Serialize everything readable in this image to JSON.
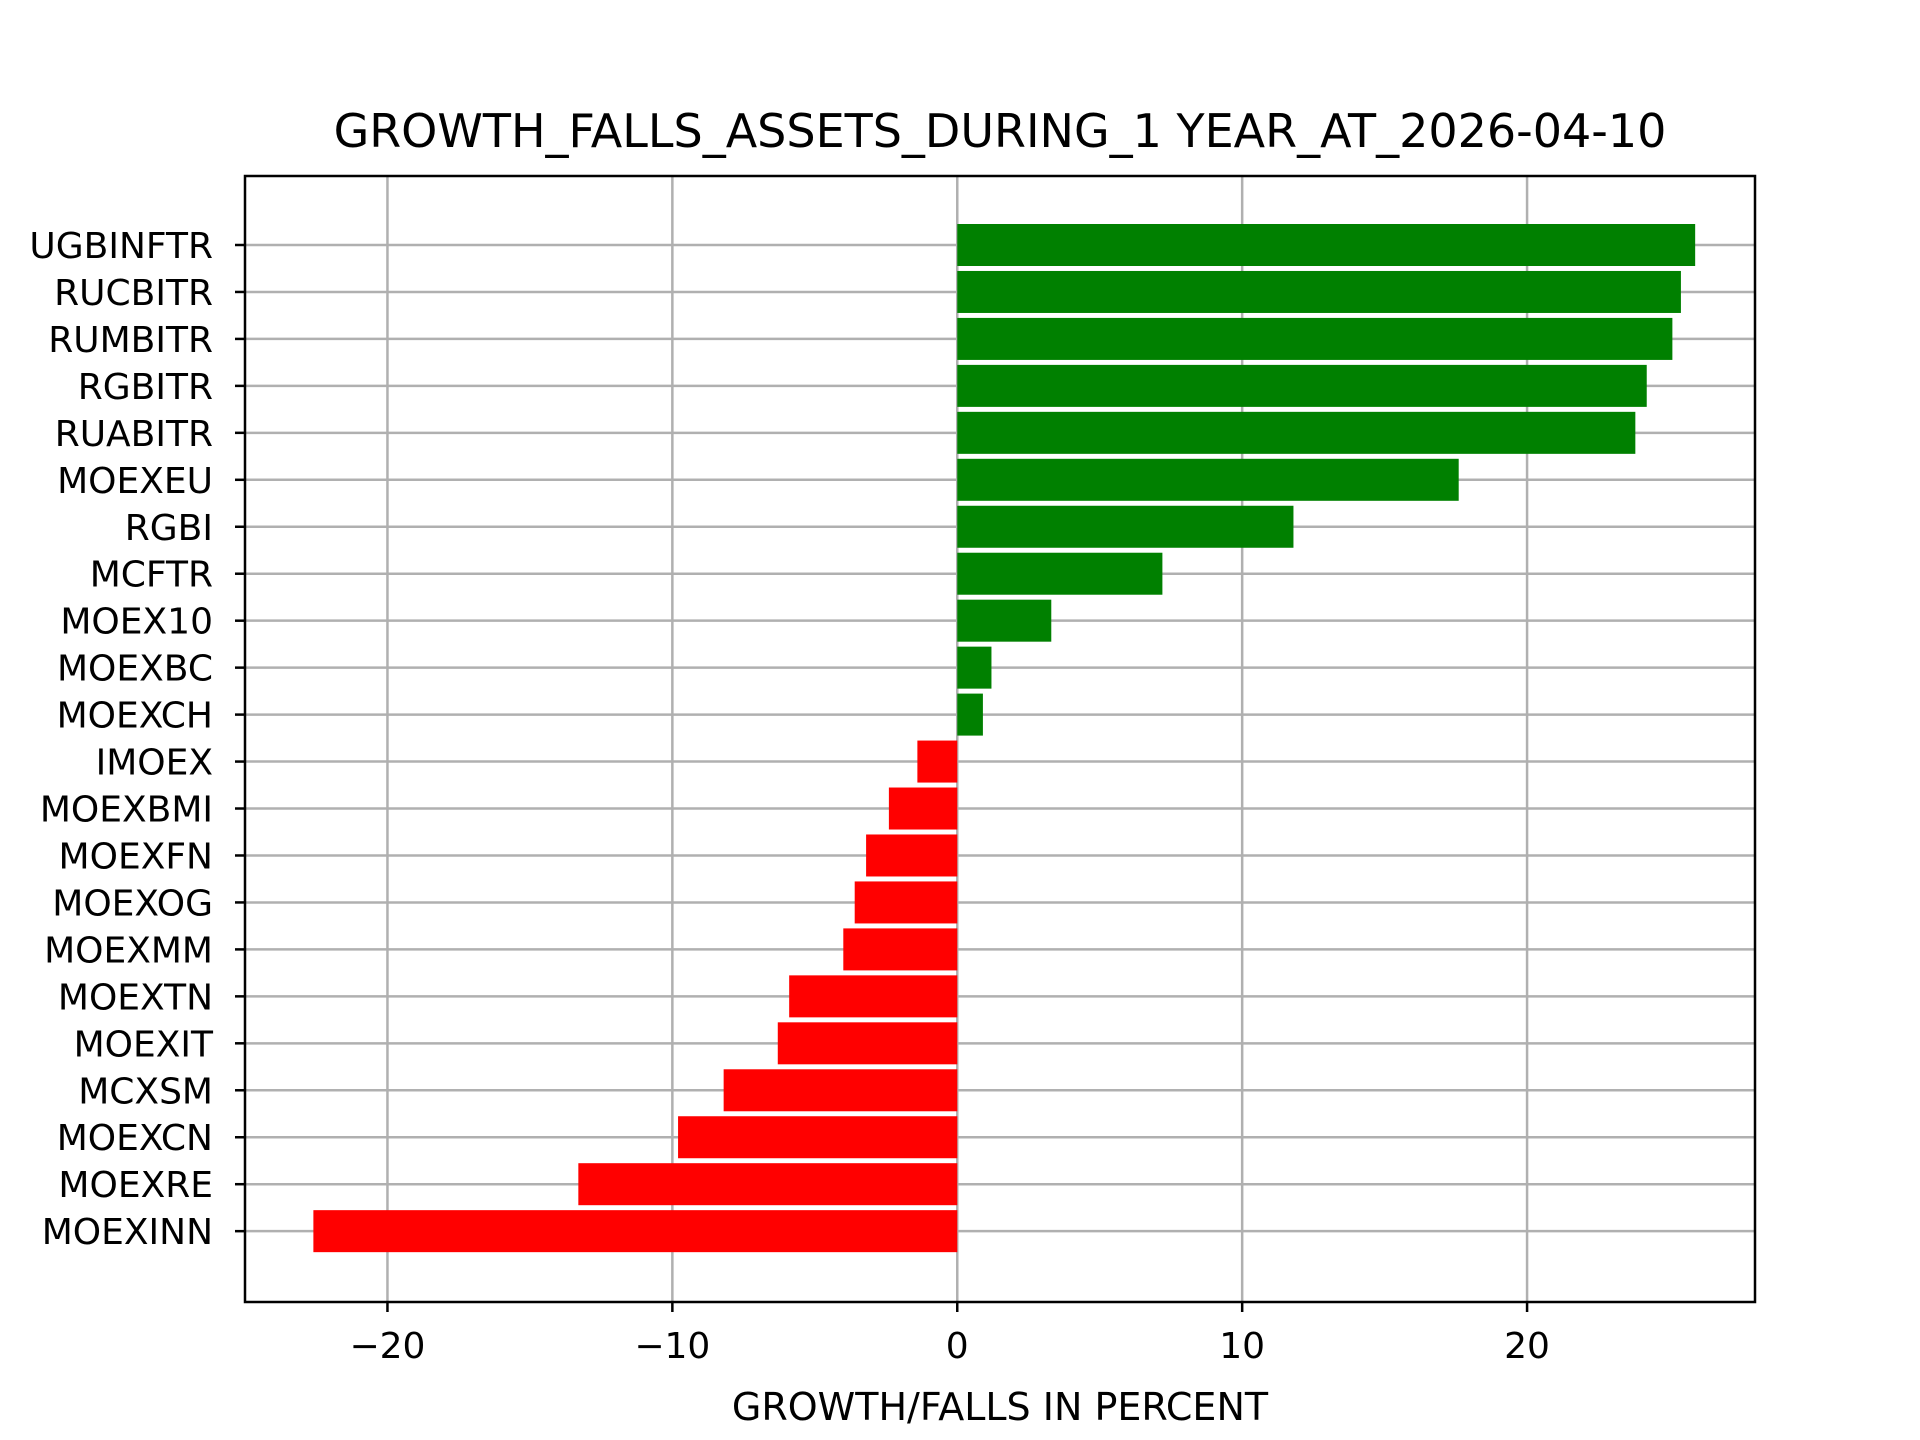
{
  "chart_data": {
    "type": "bar",
    "orientation": "horizontal",
    "title": "GROWTH_FALLS_ASSETS_DURING_1 YEAR_AT_2026-04-10",
    "xlabel": "GROWTH/FALLS IN PERCENT",
    "ylabel": "",
    "xlim": [
      -25,
      28
    ],
    "xticks": [
      -20,
      -10,
      0,
      10,
      20
    ],
    "xtick_labels": [
      "−20",
      "−10",
      "0",
      "10",
      "20"
    ],
    "grid": true,
    "colors": {
      "positive": "#008000",
      "negative": "#ff0000"
    },
    "categories": [
      "UGBINFTR",
      "RUCBITR",
      "RUMBITR",
      "RGBITR",
      "RUABITR",
      "MOEXEU",
      "RGBI",
      "MCFTR",
      "MOEX10",
      "MOEXBC",
      "MOEXCH",
      "IMOEX",
      "MOEXBMI",
      "MOEXFN",
      "MOEXOG",
      "MOEXMM",
      "MOEXTN",
      "MOEXIT",
      "MCXSM",
      "MOEXCN",
      "MOEXRE",
      "MOEXINN"
    ],
    "values": [
      25.9,
      25.4,
      25.1,
      24.2,
      23.8,
      17.6,
      11.8,
      7.2,
      3.3,
      1.2,
      0.9,
      -1.4,
      -2.4,
      -3.2,
      -3.6,
      -4.0,
      -5.9,
      -6.3,
      -8.2,
      -9.8,
      -13.3,
      -22.6
    ]
  }
}
